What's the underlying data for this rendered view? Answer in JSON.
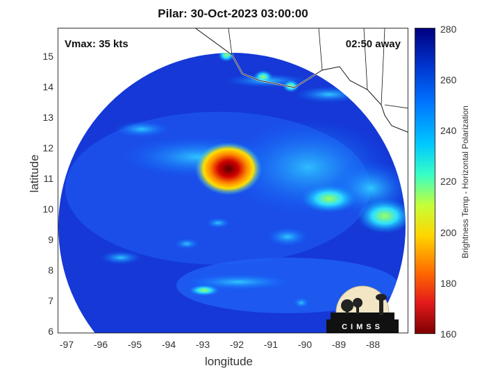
{
  "title": "Pilar: 30-Oct-2023 03:00:00",
  "vmax_label": "Vmax: 35 kts",
  "away_label": "02:50 away",
  "xlabel": "longitude",
  "ylabel": "latitude",
  "x_ticks": [
    "-97",
    "-96",
    "-95",
    "-94",
    "-93",
    "-92",
    "-91",
    "-90",
    "-89",
    "-88"
  ],
  "y_ticks": [
    "15",
    "14",
    "13",
    "12",
    "11",
    "10",
    "9",
    "8",
    "7",
    "6"
  ],
  "colorbar": {
    "label": "Brightness Temp - Horizontal Polarization",
    "ticks": [
      "280",
      "260",
      "240",
      "220",
      "200",
      "180",
      "160"
    ],
    "range": [
      160,
      280
    ]
  },
  "logo_text": "CIMSS",
  "colors": {
    "background_cold": "#1432c8",
    "core": "#8b0000"
  },
  "chart_data": {
    "type": "heatmap",
    "title": "Pilar: 30-Oct-2023 03:00:00",
    "xlabel": "longitude",
    "ylabel": "latitude",
    "xlim": [
      -97.2,
      -87.1
    ],
    "ylim": [
      5.9,
      15.9
    ],
    "storm_center": {
      "lon": -92.2,
      "lat": 11.3,
      "min_tb": 165
    },
    "colorbar_range": [
      160,
      280
    ]
  }
}
